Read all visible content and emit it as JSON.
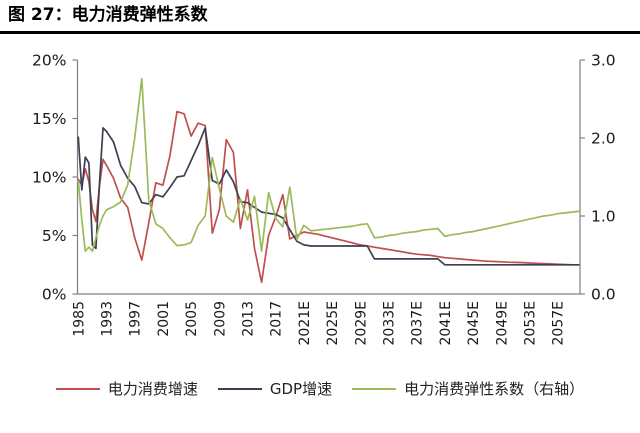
{
  "title": "图 27：电力消费弹性系数",
  "colors": {
    "electricity": "#C0504D",
    "gdp": "#3F3F54",
    "elasticity": "#9BBB59",
    "axis": "#808080",
    "text": "#1a1a1a"
  },
  "legend": [
    {
      "label": "电力消费增速",
      "color": "#C0504D"
    },
    {
      "label": "GDP增速",
      "color": "#3F3F54"
    },
    {
      "label": "电力消费弹性系数（右轴）",
      "color": "#9BBB59"
    }
  ],
  "chart_data": {
    "type": "line",
    "title": "电力消费弹性系数",
    "x_tick_labels": [
      "1985",
      "1993",
      "1997",
      "2001",
      "2005",
      "2009",
      "2013",
      "2017",
      "2021E",
      "2025E",
      "2029E",
      "2033E",
      "2037E",
      "2041E",
      "2045E",
      "2049E",
      "2053E",
      "2057E"
    ],
    "left_axis": {
      "ticks": [
        "20%",
        "15%",
        "10%",
        "5%",
        "0%"
      ],
      "tick_values": [
        20,
        15,
        10,
        5,
        0
      ],
      "min": 0,
      "max": 20
    },
    "right_axis": {
      "ticks": [
        "3.0",
        "2.0",
        "1.0",
        "0.0"
      ],
      "tick_values": [
        3,
        2,
        1,
        0
      ],
      "min": 0,
      "max": 3
    },
    "grid": false,
    "legend_position": "bottom",
    "years": [
      1985,
      1986,
      1987,
      1988,
      1989,
      1990,
      1991,
      1992,
      1993,
      1994,
      1995,
      1996,
      1997,
      1998,
      1999,
      2000,
      2001,
      2002,
      2003,
      2004,
      2005,
      2006,
      2007,
      2008,
      2009,
      2010,
      2011,
      2012,
      2013,
      2014,
      2015,
      2016,
      2017,
      2018,
      2019,
      2020,
      2021,
      2022,
      2023,
      2024,
      2025,
      2026,
      2027,
      2028,
      2029,
      2030,
      2031,
      2032,
      2033,
      2034,
      2035,
      2036,
      2037,
      2038,
      2039,
      2040,
      2041,
      2042,
      2043,
      2044,
      2045,
      2046,
      2047,
      2048,
      2049,
      2050,
      2051,
      2052,
      2053,
      2054,
      2055,
      2056,
      2057,
      2058,
      2059,
      2060
    ],
    "series": [
      {
        "key": "electricity",
        "name": "电力消费增速",
        "axis": "left",
        "unit": "%",
        "color": "#C0504D",
        "values": [
          9.8,
          9.3,
          10.7,
          9.6,
          7.2,
          6.2,
          9.2,
          11.5,
          11.0,
          9.9,
          8.2,
          7.4,
          4.8,
          2.9,
          6.1,
          9.5,
          9.3,
          11.8,
          15.6,
          15.4,
          13.5,
          14.6,
          14.4,
          5.2,
          7.2,
          13.2,
          12.1,
          5.6,
          8.9,
          3.9,
          1.0,
          5.0,
          6.6,
          8.5,
          4.7,
          5.0,
          5.3,
          5.2,
          5.1,
          4.95,
          4.8,
          4.65,
          4.5,
          4.35,
          4.2,
          4.1,
          4.0,
          3.9,
          3.8,
          3.7,
          3.6,
          3.5,
          3.4,
          3.35,
          3.3,
          3.2,
          3.1,
          3.05,
          3.0,
          2.95,
          2.9,
          2.85,
          2.8,
          2.78,
          2.75,
          2.72,
          2.7,
          2.68,
          2.65,
          2.62,
          2.6,
          2.58,
          2.55,
          2.52,
          2.5,
          2.5
        ]
      },
      {
        "key": "gdp",
        "name": "GDP增速",
        "axis": "left",
        "unit": "%",
        "color": "#3F3F54",
        "values": [
          13.4,
          8.9,
          11.7,
          11.2,
          4.2,
          3.9,
          9.3,
          14.2,
          13.9,
          13.0,
          11.0,
          9.9,
          9.2,
          7.8,
          7.7,
          8.5,
          8.3,
          9.1,
          10.0,
          10.1,
          11.4,
          12.7,
          14.2,
          9.7,
          9.4,
          10.6,
          9.6,
          7.9,
          7.8,
          7.4,
          7.0,
          6.9,
          6.8,
          6.5,
          5.5,
          4.5,
          4.2,
          4.1,
          4.1,
          4.1,
          4.1,
          4.1,
          4.1,
          4.1,
          4.1,
          4.1,
          3.0,
          3.0,
          3.0,
          3.0,
          3.0,
          3.0,
          3.0,
          3.0,
          3.0,
          3.0,
          2.5,
          2.5,
          2.5,
          2.5,
          2.5,
          2.5,
          2.5,
          2.5,
          2.5,
          2.5,
          2.5,
          2.5,
          2.5,
          2.5,
          2.5,
          2.5,
          2.5,
          2.5,
          2.5,
          2.5
        ]
      },
      {
        "key": "elasticity",
        "name": "电力消费弹性系数（右轴）",
        "axis": "right",
        "unit": "",
        "color": "#9BBB59",
        "values": [
          1.45,
          0.95,
          0.55,
          0.6,
          0.55,
          0.72,
          0.88,
          1.0,
          1.08,
          1.12,
          1.18,
          1.4,
          2.0,
          2.76,
          1.2,
          0.9,
          0.84,
          0.72,
          0.62,
          0.63,
          0.66,
          0.88,
          1.0,
          1.75,
          1.35,
          1.0,
          0.92,
          1.22,
          0.95,
          1.25,
          0.55,
          1.3,
          0.97,
          0.86,
          1.37,
          0.7,
          0.88,
          0.81,
          0.82,
          0.83,
          0.84,
          0.85,
          0.86,
          0.87,
          0.89,
          0.9,
          0.72,
          0.73,
          0.75,
          0.76,
          0.78,
          0.79,
          0.8,
          0.82,
          0.83,
          0.84,
          0.74,
          0.76,
          0.77,
          0.79,
          0.8,
          0.82,
          0.84,
          0.86,
          0.88,
          0.9,
          0.92,
          0.94,
          0.96,
          0.98,
          1.0,
          1.01,
          1.03,
          1.04,
          1.05,
          1.06
        ]
      }
    ]
  }
}
